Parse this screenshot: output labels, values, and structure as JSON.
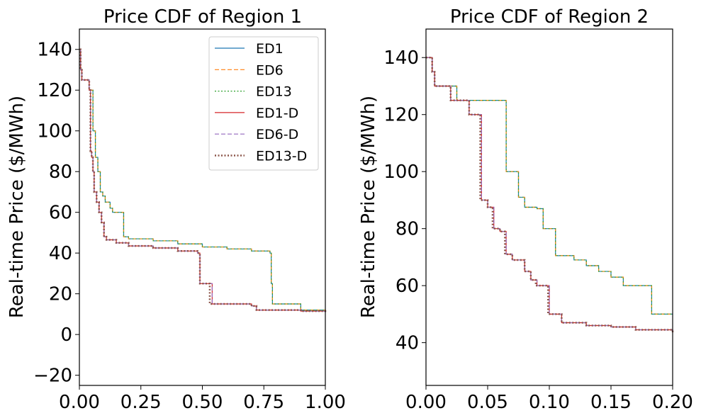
{
  "chart_data": [
    {
      "type": "line",
      "title": "Price CDF of Region 1",
      "xlabel": "",
      "ylabel": "Real-time Price ($/MWh)",
      "xlim": [
        0,
        1
      ],
      "ylim": [
        -25,
        150
      ],
      "xticks": [
        0,
        0.25,
        0.5,
        0.75,
        1.0
      ],
      "xtick_labels": [
        "0.00",
        "0.25",
        "0.50",
        "0.75",
        "1.00"
      ],
      "yticks": [
        -20,
        0,
        20,
        40,
        60,
        80,
        100,
        120,
        140
      ],
      "ytick_labels": [
        "−20",
        "0",
        "20",
        "40",
        "60",
        "80",
        "100",
        "120",
        "140"
      ],
      "grid": false,
      "legend": "top-right",
      "series": [
        {
          "name": "ED1",
          "color": "#1f77b4",
          "dash": "solid",
          "width": 1.2,
          "x": [
            0,
            0.005,
            0.01,
            0.02,
            0.04,
            0.055,
            0.065,
            0.075,
            0.085,
            0.095,
            0.105,
            0.125,
            0.135,
            0.16,
            0.18,
            0.2,
            0.3,
            0.4,
            0.5,
            0.6,
            0.7,
            0.775,
            0.78,
            0.785,
            0.8,
            0.9,
            1.0
          ],
          "y": [
            140,
            130,
            125,
            125,
            120,
            100,
            87,
            80,
            70,
            68,
            65,
            62,
            60,
            60,
            48,
            47,
            46,
            44.5,
            43,
            42,
            41,
            40,
            25,
            15,
            15,
            12,
            11
          ]
        },
        {
          "name": "ED6",
          "color": "#ff7f0e",
          "dash": "dashed",
          "width": 1.2,
          "x": [
            0,
            0.005,
            0.01,
            0.02,
            0.04,
            0.055,
            0.065,
            0.075,
            0.085,
            0.095,
            0.105,
            0.125,
            0.135,
            0.16,
            0.18,
            0.2,
            0.3,
            0.4,
            0.5,
            0.6,
            0.7,
            0.775,
            0.78,
            0.785,
            0.8,
            0.9,
            1.0
          ],
          "y": [
            140,
            130,
            125,
            125,
            120,
            100,
            87,
            80,
            70,
            68,
            65,
            62,
            60,
            60,
            48,
            47,
            46,
            44.5,
            43,
            42,
            41,
            40,
            25,
            15,
            15,
            12,
            11
          ]
        },
        {
          "name": "ED13",
          "color": "#2ca02c",
          "dash": "dotted",
          "width": 1.2,
          "x": [
            0,
            0.005,
            0.01,
            0.02,
            0.04,
            0.055,
            0.065,
            0.075,
            0.085,
            0.095,
            0.105,
            0.125,
            0.135,
            0.16,
            0.18,
            0.2,
            0.3,
            0.4,
            0.5,
            0.6,
            0.7,
            0.775,
            0.78,
            0.785,
            0.8,
            0.9,
            1.0
          ],
          "y": [
            140,
            130,
            125,
            125,
            120,
            100,
            87,
            80,
            70,
            68,
            65,
            62,
            60,
            60,
            48,
            47,
            46,
            44.5,
            43,
            42,
            41,
            40,
            25,
            15,
            15,
            12,
            11
          ]
        },
        {
          "name": "ED1-D",
          "color": "#d62728",
          "dash": "solid",
          "width": 1.2,
          "x": [
            0,
            0.005,
            0.01,
            0.02,
            0.04,
            0.045,
            0.05,
            0.055,
            0.06,
            0.07,
            0.08,
            0.09,
            0.1,
            0.11,
            0.15,
            0.2,
            0.3,
            0.4,
            0.48,
            0.49,
            0.54,
            0.6,
            0.7,
            0.72,
            0.8,
            0.9,
            1.0
          ],
          "y": [
            140,
            130,
            125,
            125,
            120,
            90,
            87,
            80,
            70,
            65,
            60,
            55,
            48,
            46.5,
            45,
            43.5,
            42.5,
            41,
            40,
            25,
            15,
            15,
            14,
            12,
            12,
            11.5,
            11
          ]
        },
        {
          "name": "ED6-D",
          "color": "#9467bd",
          "dash": "dashed",
          "width": 1.2,
          "x": [
            0,
            0.005,
            0.01,
            0.02,
            0.04,
            0.045,
            0.05,
            0.055,
            0.06,
            0.07,
            0.08,
            0.09,
            0.1,
            0.11,
            0.15,
            0.2,
            0.3,
            0.4,
            0.48,
            0.49,
            0.54,
            0.6,
            0.7,
            0.72,
            0.8,
            0.9,
            1.0
          ],
          "y": [
            140,
            130,
            125,
            125,
            120,
            90,
            87,
            80,
            70,
            65,
            60,
            55,
            48,
            46.5,
            45,
            43.5,
            42.5,
            41,
            40,
            25,
            15,
            15,
            14,
            12,
            12,
            11.5,
            11
          ]
        },
        {
          "name": "ED13-D",
          "color": "#8c564b",
          "dash": "dotted",
          "width": 2.5,
          "x": [
            0,
            0.005,
            0.01,
            0.02,
            0.04,
            0.045,
            0.05,
            0.055,
            0.06,
            0.07,
            0.08,
            0.09,
            0.1,
            0.11,
            0.15,
            0.2,
            0.3,
            0.4,
            0.48,
            0.49,
            0.53,
            0.6,
            0.7,
            0.72,
            0.8,
            0.9,
            1.0
          ],
          "y": [
            140,
            130,
            125,
            125,
            120,
            90,
            87,
            80,
            70,
            65,
            60,
            55,
            48,
            46.5,
            45,
            43.5,
            42.5,
            41,
            40,
            25,
            15,
            15,
            14,
            12,
            12,
            11.5,
            11
          ]
        }
      ]
    },
    {
      "type": "line",
      "title": "Price CDF of Region 2",
      "xlabel": "",
      "ylabel": "Real-time Price ($/MWh)",
      "xlim": [
        0,
        0.2
      ],
      "ylim": [
        25,
        150
      ],
      "xticks": [
        0,
        0.05,
        0.1,
        0.15,
        0.2
      ],
      "xtick_labels": [
        "0.00",
        "0.05",
        "0.10",
        "0.15",
        "0.20"
      ],
      "yticks": [
        40,
        60,
        80,
        100,
        120,
        140
      ],
      "ytick_labels": [
        "40",
        "60",
        "80",
        "100",
        "120",
        "140"
      ],
      "grid": false,
      "legend": "none",
      "series": [
        {
          "name": "ED1",
          "color": "#1f77b4",
          "dash": "solid",
          "width": 1.2,
          "x": [
            0,
            0.005,
            0.007,
            0.025,
            0.045,
            0.065,
            0.075,
            0.08,
            0.09,
            0.095,
            0.105,
            0.12,
            0.13,
            0.14,
            0.15,
            0.16,
            0.18,
            0.183,
            0.2
          ],
          "y": [
            140,
            135,
            130,
            125,
            125,
            100,
            91,
            87.5,
            87,
            80,
            70.5,
            69,
            67,
            65,
            63,
            60,
            60,
            50,
            50
          ]
        },
        {
          "name": "ED6",
          "color": "#ff7f0e",
          "dash": "dashed",
          "width": 1.2,
          "x": [
            0,
            0.005,
            0.007,
            0.025,
            0.045,
            0.065,
            0.075,
            0.08,
            0.09,
            0.095,
            0.105,
            0.12,
            0.13,
            0.14,
            0.15,
            0.16,
            0.18,
            0.183,
            0.2
          ],
          "y": [
            140,
            135,
            130,
            125,
            125,
            100,
            91,
            87.5,
            87,
            80,
            70.5,
            69,
            67,
            65,
            63,
            60,
            60,
            50,
            50
          ]
        },
        {
          "name": "ED13",
          "color": "#2ca02c",
          "dash": "dotted",
          "width": 1.2,
          "x": [
            0,
            0.005,
            0.007,
            0.025,
            0.045,
            0.065,
            0.075,
            0.08,
            0.09,
            0.095,
            0.105,
            0.12,
            0.13,
            0.14,
            0.15,
            0.16,
            0.18,
            0.183,
            0.2
          ],
          "y": [
            140,
            135,
            130,
            125,
            125,
            100,
            91,
            87.5,
            87,
            80,
            70.5,
            69,
            67,
            65,
            63,
            60,
            60,
            50,
            50
          ]
        },
        {
          "name": "ED1-D",
          "color": "#d62728",
          "dash": "solid",
          "width": 1.2,
          "x": [
            0,
            0.005,
            0.007,
            0.02,
            0.035,
            0.045,
            0.05,
            0.055,
            0.06,
            0.065,
            0.07,
            0.08,
            0.085,
            0.09,
            0.1,
            0.11,
            0.13,
            0.15,
            0.17,
            0.2
          ],
          "y": [
            140,
            135,
            130,
            125,
            120,
            90,
            87.5,
            80,
            79,
            71,
            69,
            65,
            62,
            60,
            50,
            47,
            46,
            45.5,
            44.5,
            43.5
          ]
        },
        {
          "name": "ED6-D",
          "color": "#9467bd",
          "dash": "dashed",
          "width": 1.2,
          "x": [
            0,
            0.005,
            0.007,
            0.02,
            0.035,
            0.045,
            0.05,
            0.055,
            0.06,
            0.065,
            0.07,
            0.08,
            0.085,
            0.09,
            0.1,
            0.11,
            0.13,
            0.15,
            0.17,
            0.2
          ],
          "y": [
            140,
            135,
            130,
            125,
            120,
            90,
            87.5,
            80,
            79,
            71,
            69,
            65,
            62,
            60,
            50,
            47,
            46,
            45.5,
            44.5,
            43.5
          ]
        },
        {
          "name": "ED13-D",
          "color": "#8c564b",
          "dash": "dotted",
          "width": 2.5,
          "x": [
            0,
            0.005,
            0.007,
            0.02,
            0.035,
            0.044,
            0.05,
            0.054,
            0.06,
            0.064,
            0.07,
            0.08,
            0.085,
            0.089,
            0.099,
            0.11,
            0.13,
            0.15,
            0.17,
            0.2
          ],
          "y": [
            140,
            135,
            130,
            125,
            120,
            90,
            87.5,
            80,
            79,
            71,
            69,
            65,
            62,
            60,
            50,
            47,
            46,
            45.5,
            44.5,
            43.5
          ]
        }
      ]
    }
  ]
}
